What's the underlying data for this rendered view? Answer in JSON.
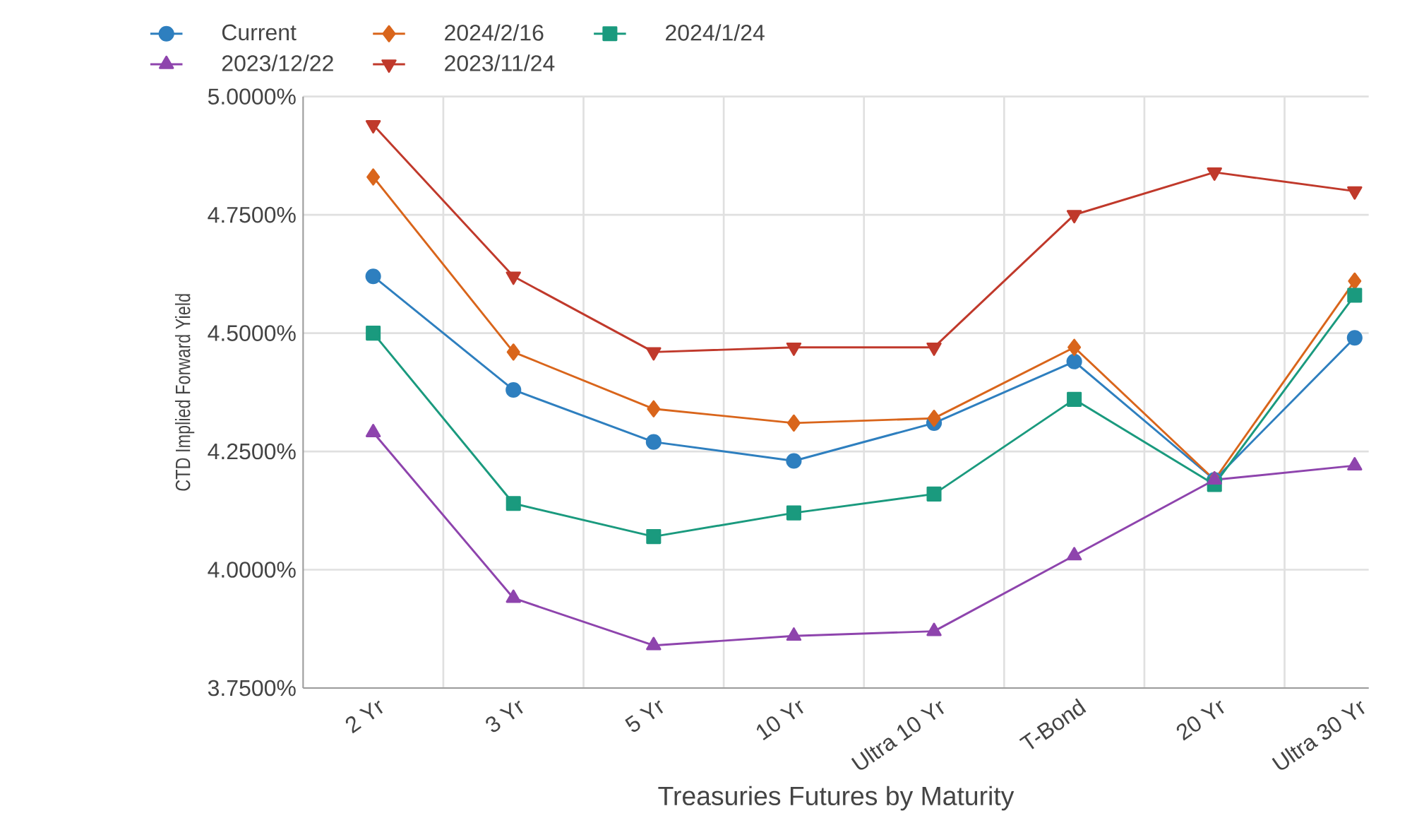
{
  "chart_data": {
    "type": "line",
    "xlabel": "Treasuries Futures by Maturity",
    "ylabel": "CTD Implied Forward Yield",
    "categories": [
      "2 Yr",
      "3 Yr",
      "5 Yr",
      "10 Yr",
      "Ultra 10 Yr",
      "T-Bond",
      "20 Yr",
      "Ultra 30 Yr"
    ],
    "series": [
      {
        "name": "Current",
        "color": "#2e7fbf",
        "marker": "circle",
        "values": [
          4.62,
          4.38,
          4.27,
          4.23,
          4.31,
          4.44,
          4.19,
          4.49
        ]
      },
      {
        "name": "2024/2/16",
        "color": "#d9651b",
        "marker": "diamond",
        "values": [
          4.83,
          4.46,
          4.34,
          4.31,
          4.32,
          4.47,
          4.19,
          4.61
        ]
      },
      {
        "name": "2024/1/24",
        "color": "#1a9a7e",
        "marker": "square",
        "values": [
          4.5,
          4.14,
          4.07,
          4.12,
          4.16,
          4.36,
          4.18,
          4.58
        ]
      },
      {
        "name": "2023/12/22",
        "color": "#8e44ad",
        "marker": "triangle",
        "values": [
          4.29,
          3.94,
          3.84,
          3.86,
          3.87,
          4.03,
          4.19,
          4.22
        ]
      },
      {
        "name": "2023/11/24",
        "color": "#c0392b",
        "marker": "triangle-down",
        "values": [
          4.94,
          4.62,
          4.46,
          4.47,
          4.47,
          4.75,
          4.84,
          4.8
        ]
      }
    ],
    "ylim": [
      3.75,
      5.0
    ],
    "yticks": [
      {
        "value": 3.75,
        "label": "3.7500%"
      },
      {
        "value": 4.0,
        "label": "4.0000%"
      },
      {
        "value": 4.25,
        "label": "4.2500%"
      },
      {
        "value": 4.5,
        "label": "4.5000%"
      },
      {
        "value": 4.75,
        "label": "4.7500%"
      },
      {
        "value": 5.0,
        "label": "5.0000%"
      }
    ],
    "grid": true,
    "legend": "top",
    "line_style": "solid"
  }
}
